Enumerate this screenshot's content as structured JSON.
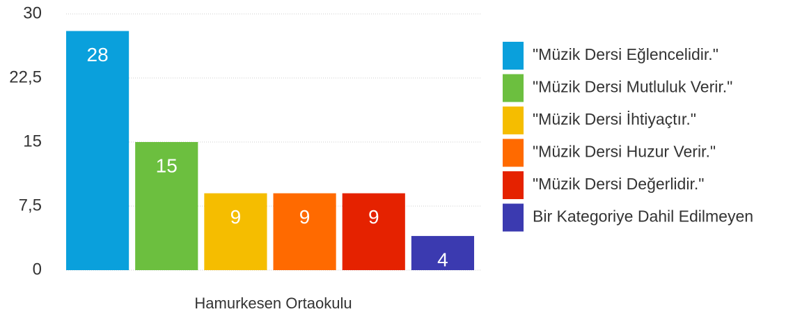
{
  "chart_data": {
    "type": "bar",
    "categories": [
      "Hamurkesen Ortaokulu"
    ],
    "series": [
      {
        "name": "\"Müzik Dersi Eğlencelidir.\"",
        "color": "#0aa0dc",
        "values": [
          28
        ]
      },
      {
        "name": "\"Müzik Dersi Mutluluk Verir.\"",
        "color": "#6cbf3f",
        "values": [
          15
        ]
      },
      {
        "name": "\"Müzik Dersi İhtiyaçtır.\"",
        "color": "#f5bd00",
        "values": [
          9
        ]
      },
      {
        "name": "\"Müzik Dersi Huzur Verir.\"",
        "color": "#ff6a00",
        "values": [
          9
        ]
      },
      {
        "name": "\"Müzik Dersi Değerlidir.\"",
        "color": "#e52200",
        "values": [
          9
        ]
      },
      {
        "name": "Bir Kategoriye Dahil Edilmeyen",
        "color": "#3b3ab0",
        "values": [
          4
        ]
      }
    ],
    "ylim": [
      0,
      30
    ],
    "yticks": [
      0,
      {
        "value": 7.5,
        "label": "7,5"
      },
      15,
      {
        "value": 22.5,
        "label": "22,5"
      },
      30
    ],
    "grid": true,
    "legend": "right"
  }
}
